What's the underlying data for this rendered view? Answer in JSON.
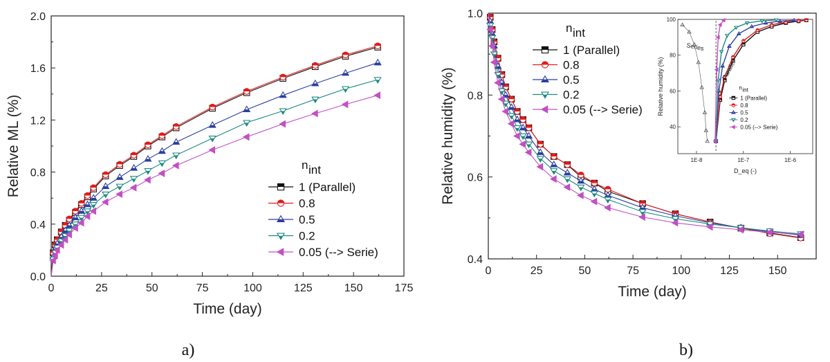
{
  "chart_data": [
    {
      "panel": "a)",
      "type": "line",
      "xlabel": "Time (day)",
      "ylabel": "Relative ML (%)",
      "xlim": [
        0,
        175
      ],
      "ylim": [
        0.0,
        2.0
      ],
      "xticks": [
        "0",
        "25",
        "50",
        "75",
        "100",
        "125",
        "150",
        "175"
      ],
      "yticks": [
        "0.0",
        "0.4",
        "0.8",
        "1.2",
        "1.6",
        "2.0"
      ],
      "legend_title": "n",
      "legend_title_sub": "int",
      "legend_position": "center-right",
      "x": [
        0,
        1,
        2,
        3,
        5,
        7,
        9,
        12,
        15,
        18,
        21,
        27,
        34,
        41,
        48,
        55,
        62,
        80,
        97,
        115,
        131,
        146,
        162
      ],
      "series": [
        {
          "name": "1  (Parallel)",
          "color": "#111111",
          "marker": "square",
          "values": [
            0.0,
            0.18,
            0.24,
            0.28,
            0.34,
            0.39,
            0.43,
            0.49,
            0.55,
            0.61,
            0.67,
            0.77,
            0.85,
            0.92,
            1.0,
            1.07,
            1.14,
            1.29,
            1.41,
            1.52,
            1.61,
            1.69,
            1.76
          ]
        },
        {
          "name": "0.8",
          "color": "#e21b1b",
          "marker": "circle",
          "values": [
            0.0,
            0.18,
            0.24,
            0.28,
            0.34,
            0.39,
            0.44,
            0.5,
            0.56,
            0.62,
            0.68,
            0.78,
            0.86,
            0.93,
            1.01,
            1.08,
            1.15,
            1.3,
            1.42,
            1.53,
            1.62,
            1.7,
            1.77
          ]
        },
        {
          "name": "0.5",
          "color": "#2a3fa0",
          "marker": "triangle-up",
          "values": [
            0.0,
            0.15,
            0.21,
            0.25,
            0.3,
            0.35,
            0.39,
            0.45,
            0.5,
            0.55,
            0.6,
            0.69,
            0.76,
            0.83,
            0.9,
            0.96,
            1.03,
            1.16,
            1.28,
            1.39,
            1.48,
            1.56,
            1.64
          ]
        },
        {
          "name": "0.2",
          "color": "#1d8a80",
          "marker": "triangle-down",
          "values": [
            0.0,
            0.13,
            0.18,
            0.22,
            0.27,
            0.31,
            0.35,
            0.4,
            0.45,
            0.5,
            0.55,
            0.63,
            0.69,
            0.75,
            0.81,
            0.87,
            0.93,
            1.06,
            1.18,
            1.27,
            1.36,
            1.44,
            1.51
          ]
        },
        {
          "name": "0.05 (--> Serie)",
          "color": "#c34fc3",
          "marker": "triangle-left",
          "values": [
            0.0,
            0.12,
            0.16,
            0.2,
            0.24,
            0.28,
            0.32,
            0.37,
            0.41,
            0.46,
            0.5,
            0.57,
            0.63,
            0.68,
            0.74,
            0.79,
            0.85,
            0.97,
            1.07,
            1.17,
            1.25,
            1.32,
            1.39
          ]
        }
      ]
    },
    {
      "panel": "b)",
      "type": "line",
      "xlabel": "Time (day)",
      "ylabel": "Relative humidity (%)",
      "xlim": [
        0,
        170
      ],
      "ylim": [
        0.4,
        1.0
      ],
      "xticks": [
        "0",
        "25",
        "50",
        "75",
        "100",
        "125",
        "150"
      ],
      "yticks": [
        "0.4",
        "0.6",
        "0.8",
        "1.0"
      ],
      "legend_title": "n",
      "legend_title_sub": "int",
      "legend_position": "top-left",
      "x": [
        0,
        1,
        2,
        3,
        5,
        7,
        9,
        12,
        15,
        18,
        21,
        27,
        34,
        41,
        48,
        55,
        62,
        80,
        97,
        115,
        131,
        146,
        162
      ],
      "series": [
        {
          "name": "1  (Parallel)",
          "color": "#111111",
          "marker": "square",
          "values": [
            1.0,
            0.99,
            0.96,
            0.93,
            0.89,
            0.85,
            0.82,
            0.79,
            0.76,
            0.74,
            0.72,
            0.68,
            0.65,
            0.63,
            0.6,
            0.585,
            0.565,
            0.535,
            0.51,
            0.49,
            0.475,
            0.463,
            0.452
          ]
        },
        {
          "name": "0.8",
          "color": "#e21b1b",
          "marker": "circle",
          "values": [
            1.0,
            0.99,
            0.96,
            0.93,
            0.89,
            0.85,
            0.82,
            0.79,
            0.76,
            0.74,
            0.72,
            0.68,
            0.65,
            0.63,
            0.605,
            0.585,
            0.57,
            0.535,
            0.51,
            0.49,
            0.475,
            0.462,
            0.451
          ]
        },
        {
          "name": "0.5",
          "color": "#2a3fa0",
          "marker": "triangle-up",
          "values": [
            1.0,
            0.98,
            0.95,
            0.92,
            0.87,
            0.83,
            0.8,
            0.77,
            0.74,
            0.72,
            0.7,
            0.66,
            0.63,
            0.61,
            0.59,
            0.57,
            0.555,
            0.525,
            0.505,
            0.488,
            0.476,
            0.466,
            0.458
          ]
        },
        {
          "name": "0.2",
          "color": "#1d8a80",
          "marker": "triangle-down",
          "values": [
            1.0,
            0.97,
            0.94,
            0.9,
            0.85,
            0.81,
            0.78,
            0.75,
            0.72,
            0.7,
            0.68,
            0.645,
            0.615,
            0.595,
            0.575,
            0.56,
            0.545,
            0.515,
            0.498,
            0.485,
            0.476,
            0.468,
            0.461
          ]
        },
        {
          "name": "0.05 (--> Serie)",
          "color": "#c34fc3",
          "marker": "triangle-left",
          "values": [
            1.0,
            0.96,
            0.92,
            0.88,
            0.83,
            0.79,
            0.76,
            0.73,
            0.7,
            0.68,
            0.66,
            0.625,
            0.595,
            0.575,
            0.555,
            0.54,
            0.525,
            0.502,
            0.488,
            0.478,
            0.471,
            0.465,
            0.46
          ]
        }
      ]
    },
    {
      "panel": "b) inset",
      "type": "line",
      "xscale": "log",
      "xlabel": "D_eq (-)",
      "ylabel": "Relative humidity (%)",
      "xlim": [
        4e-09,
        3e-06
      ],
      "ylim": [
        25,
        100
      ],
      "xticks": [
        "1E-8",
        "1E-7",
        "1E-6"
      ],
      "yticks": [
        "40",
        "60",
        "80",
        "100"
      ],
      "legend_title": "n",
      "legend_title_sub": "int",
      "annotations": [
        "Series",
        "Parallel"
      ],
      "series": [
        {
          "name": "1  (Parallel)",
          "color": "#111111",
          "marker": "square",
          "x": [
            2.6e-08,
            3.2e-08,
            4e-08,
            6e-08,
            1e-07,
            2e-07,
            4e-07,
            8e-07,
            1.5e-06,
            2.2e-06
          ],
          "values": [
            32,
            55,
            66,
            77,
            86,
            93,
            96,
            98,
            99,
            99.5
          ]
        },
        {
          "name": "0.8",
          "color": "#e21b1b",
          "marker": "circle",
          "x": [
            2.6e-08,
            3.2e-08,
            4e-08,
            6e-08,
            1e-07,
            2e-07,
            4e-07,
            8e-07,
            1.5e-06,
            2.2e-06
          ],
          "values": [
            32,
            57,
            68,
            79,
            88,
            94,
            97,
            98.5,
            99.3,
            99.6
          ]
        },
        {
          "name": "0.5",
          "color": "#2a3fa0",
          "marker": "triangle-up",
          "x": [
            2.6e-08,
            3e-08,
            3.6e-08,
            5e-08,
            8e-08,
            1.5e-07,
            3e-07,
            6e-07,
            1.2e-06
          ],
          "values": [
            32,
            60,
            74,
            85,
            92,
            96,
            98,
            99,
            99.5
          ]
        },
        {
          "name": "0.2",
          "color": "#1d8a80",
          "marker": "triangle-down",
          "x": [
            2.6e-08,
            2.9e-08,
            3.4e-08,
            4.5e-08,
            7e-08,
            1.2e-07,
            2.5e-07,
            5e-07
          ],
          "values": [
            32,
            66,
            82,
            91,
            95.5,
            98,
            99.2,
            99.7
          ]
        },
        {
          "name": "0.05 (--> Serie)",
          "color": "#c34fc3",
          "marker": "triangle-left",
          "x": [
            2.5e-08,
            2.7e-08,
            2.9e-08,
            3.2e-08,
            3.8e-08
          ],
          "values": [
            32,
            72,
            90,
            97,
            99.5
          ]
        },
        {
          "name": "Series",
          "color": "#555555",
          "marker": "triangle-open",
          "x": [
            5e-09,
            7e-09,
            9e-09,
            1.1e-08,
            1.3e-08,
            1.5e-08,
            1.6e-08,
            1.7e-08
          ],
          "values": [
            97,
            93,
            86,
            76,
            62,
            48,
            38,
            32
          ]
        }
      ]
    }
  ],
  "captions": {
    "a": "a)",
    "b": "b)"
  }
}
